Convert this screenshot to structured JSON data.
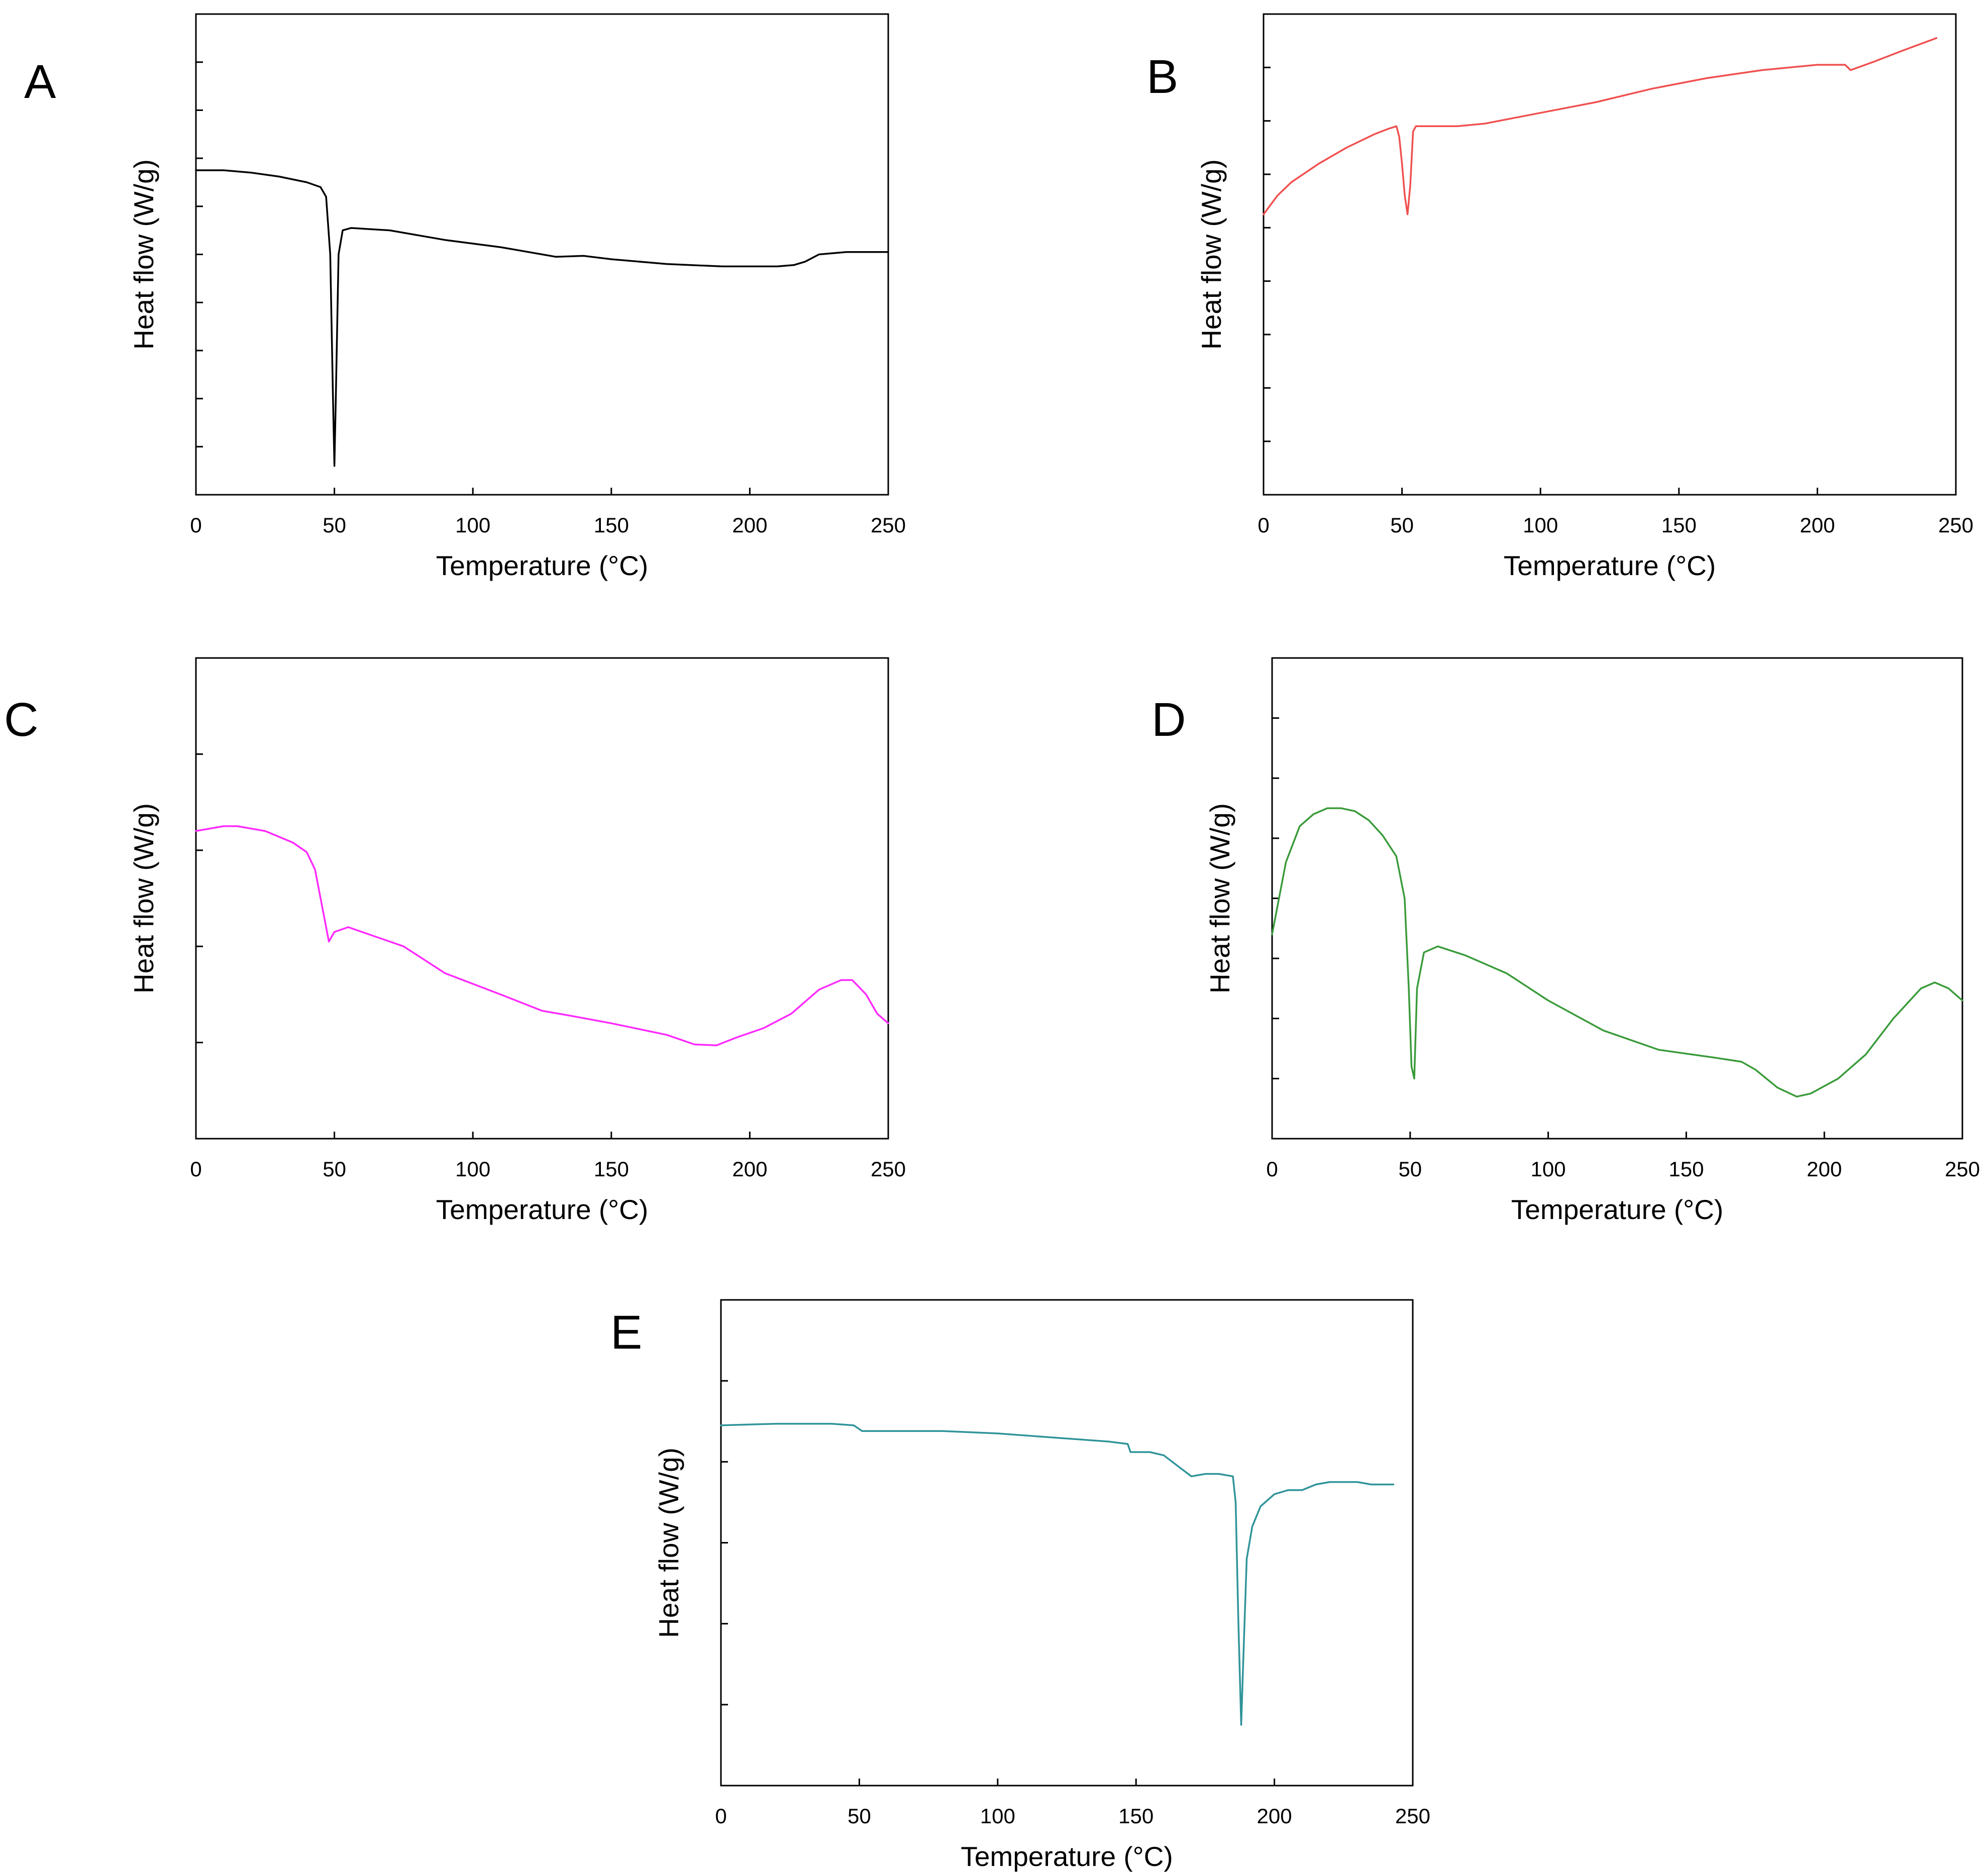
{
  "figure": {
    "description_panels": [
      "A",
      "B",
      "C",
      "D",
      "E"
    ]
  },
  "chart_data": [
    {
      "panel": "A",
      "type": "line",
      "color": "#000000",
      "xlabel": "Temperature (°C)",
      "ylabel": "Heat flow (W/g)",
      "xlim": [
        0,
        250
      ],
      "ylim": [
        0,
        10
      ],
      "xticks": [
        0,
        50,
        100,
        150,
        200,
        250
      ],
      "yticks": [
        1,
        2,
        3,
        4,
        5,
        6,
        7,
        8,
        9
      ],
      "x": [
        0,
        10,
        20,
        30,
        40,
        45,
        47,
        48.5,
        49.5,
        50,
        50.5,
        51.5,
        53,
        56,
        70,
        90,
        110,
        130,
        140,
        150,
        170,
        190,
        200,
        210,
        216,
        220,
        225,
        235,
        250
      ],
      "y": [
        6.75,
        6.75,
        6.7,
        6.62,
        6.5,
        6.4,
        6.2,
        5.0,
        2.0,
        0.6,
        2.0,
        5.0,
        5.5,
        5.55,
        5.5,
        5.3,
        5.15,
        4.95,
        4.97,
        4.9,
        4.8,
        4.75,
        4.75,
        4.75,
        4.78,
        4.85,
        5.0,
        5.05,
        5.05
      ]
    },
    {
      "panel": "B",
      "type": "line",
      "color": "#f0504f",
      "xlabel": "Temperature (°C)",
      "ylabel": "Heat flow (W/g)",
      "xlim": [
        0,
        250
      ],
      "ylim": [
        0,
        9
      ],
      "xticks": [
        0,
        50,
        100,
        150,
        200,
        250
      ],
      "yticks": [
        1,
        2,
        3,
        4,
        5,
        6,
        7,
        8
      ],
      "x": [
        0,
        5,
        10,
        20,
        30,
        40,
        45,
        48,
        49,
        50,
        51,
        52,
        53,
        54,
        55,
        60,
        70,
        80,
        100,
        120,
        140,
        160,
        180,
        200,
        210,
        212,
        220,
        230,
        243
      ],
      "y": [
        5.25,
        5.6,
        5.85,
        6.2,
        6.5,
        6.75,
        6.85,
        6.9,
        6.7,
        6.2,
        5.6,
        5.25,
        5.8,
        6.8,
        6.9,
        6.9,
        6.9,
        6.95,
        7.15,
        7.35,
        7.6,
        7.8,
        7.95,
        8.05,
        8.05,
        7.95,
        8.1,
        8.3,
        8.55
      ]
    },
    {
      "panel": "C",
      "type": "line",
      "color": "#ff29ff",
      "xlabel": "Temperature (°C)",
      "ylabel": "Heat flow (W/g)",
      "xlim": [
        0,
        250
      ],
      "ylim": [
        0,
        5
      ],
      "xticks": [
        0,
        50,
        100,
        150,
        200,
        250
      ],
      "yticks": [
        1,
        2,
        3,
        4
      ],
      "x": [
        0,
        10,
        15,
        25,
        35,
        40,
        43,
        46,
        48,
        50,
        55,
        60,
        75,
        90,
        110,
        125,
        135,
        150,
        170,
        180,
        188,
        195,
        205,
        215,
        225,
        233,
        237,
        242,
        246,
        250
      ],
      "y": [
        3.2,
        3.25,
        3.25,
        3.2,
        3.08,
        2.98,
        2.8,
        2.35,
        2.05,
        2.15,
        2.2,
        2.15,
        2.0,
        1.72,
        1.5,
        1.33,
        1.28,
        1.2,
        1.08,
        0.98,
        0.97,
        1.05,
        1.15,
        1.3,
        1.55,
        1.65,
        1.65,
        1.5,
        1.3,
        1.2
      ]
    },
    {
      "panel": "D",
      "type": "line",
      "color": "#3a9b3a",
      "xlabel": "Temperature (°C)",
      "ylabel": "Heat flow (W/g)",
      "xlim": [
        0,
        250
      ],
      "ylim": [
        0,
        8
      ],
      "xticks": [
        0,
        50,
        100,
        150,
        200,
        250
      ],
      "yticks": [
        1,
        2,
        3,
        4,
        5,
        6,
        7
      ],
      "x": [
        0,
        5,
        10,
        15,
        20,
        25,
        30,
        35,
        40,
        45,
        48,
        49.5,
        50.5,
        51.5,
        52.5,
        55,
        60,
        70,
        85,
        100,
        120,
        140,
        160,
        170,
        175,
        183,
        190,
        195,
        205,
        215,
        225,
        235,
        240,
        245,
        250
      ],
      "y": [
        3.4,
        4.6,
        5.2,
        5.4,
        5.5,
        5.5,
        5.45,
        5.3,
        5.05,
        4.7,
        4.0,
        2.5,
        1.2,
        1.0,
        2.5,
        3.1,
        3.2,
        3.05,
        2.75,
        2.3,
        1.8,
        1.48,
        1.35,
        1.28,
        1.15,
        0.85,
        0.7,
        0.75,
        1.0,
        1.4,
        2.0,
        2.5,
        2.6,
        2.5,
        2.3
      ]
    },
    {
      "panel": "E",
      "type": "line",
      "color": "#2f9499",
      "xlabel": "Temperature (°C)",
      "ylabel": "Heat flow (W/g)",
      "xlim": [
        0,
        250
      ],
      "ylim": [
        0,
        6
      ],
      "xticks": [
        0,
        50,
        100,
        150,
        200,
        250
      ],
      "yticks": [
        1,
        2,
        3,
        4,
        5
      ],
      "x": [
        0,
        20,
        40,
        48,
        51,
        60,
        80,
        100,
        120,
        140,
        147,
        148,
        155,
        160,
        165,
        170,
        175,
        180,
        185,
        186,
        187,
        188,
        189,
        190,
        192,
        195,
        200,
        205,
        210,
        215,
        220,
        230,
        235,
        243
      ],
      "y": [
        4.45,
        4.47,
        4.47,
        4.45,
        4.38,
        4.38,
        4.38,
        4.35,
        4.3,
        4.25,
        4.22,
        4.12,
        4.12,
        4.08,
        3.95,
        3.82,
        3.85,
        3.85,
        3.82,
        3.5,
        2.0,
        0.75,
        1.8,
        2.8,
        3.2,
        3.45,
        3.6,
        3.65,
        3.65,
        3.72,
        3.75,
        3.75,
        3.72,
        3.72
      ]
    }
  ]
}
